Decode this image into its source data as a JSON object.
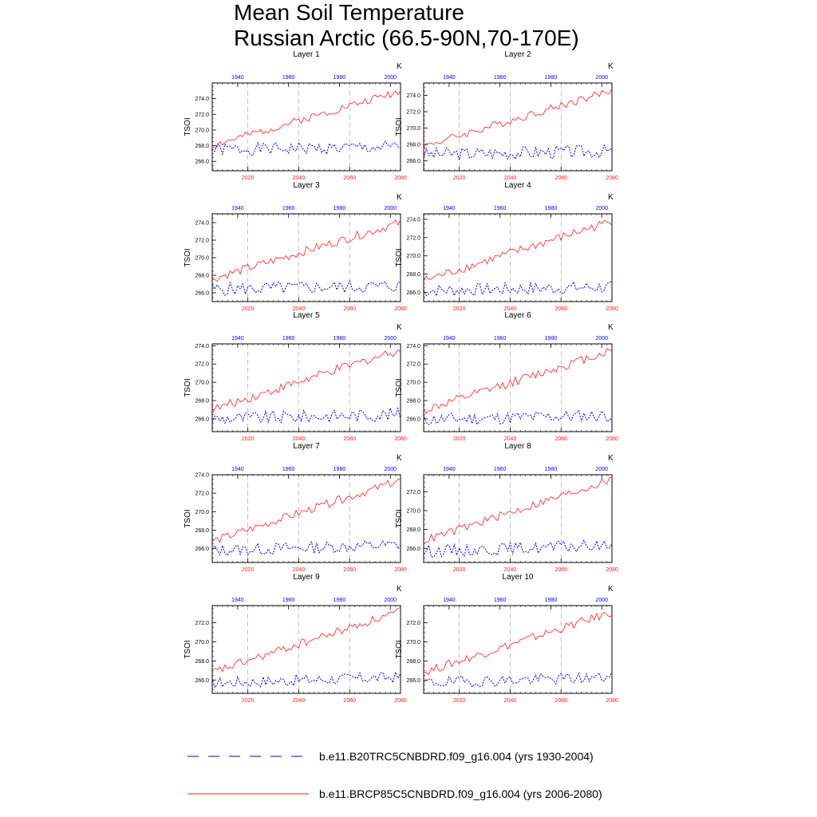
{
  "title": {
    "line1": "Mean Soil Temperature",
    "line2": "Russian Arctic (66.5-90N,70-170E)"
  },
  "colors": {
    "historical": "#0000ff",
    "future": "#ff2020",
    "grid": "#999999"
  },
  "legend": [
    {
      "label": "b.e11.B20TRC5CNBDRD.f09_g16.004 (yrs 1930-2004)",
      "style": "dashed",
      "color": "#0000ff"
    },
    {
      "label": "b.e11.BRCP85C5CNBDRD.f09_g16.004 (yrs 2006-2080)",
      "style": "solid",
      "color": "#ff2020"
    }
  ],
  "chart_data": [
    {
      "type": "line",
      "title": "Layer 1",
      "ylabel": "TSOI",
      "units": "K",
      "ylim": [
        264.8,
        276.0
      ],
      "yticks": [
        266.0,
        268.0,
        270.0,
        272.0,
        274.0
      ],
      "ytick_labels": [
        "266.0",
        "268.0",
        "270.0",
        "272.0",
        "274.0"
      ],
      "bottom_axis": {
        "range": [
          2006,
          2080
        ],
        "ticks": [
          2020,
          2040,
          2060,
          2080
        ],
        "color": "#ff2020"
      },
      "top_axis": {
        "range": [
          1930,
          2004
        ],
        "ticks": [
          1940,
          1960,
          1980,
          2000
        ],
        "color": "#0000ff"
      },
      "series": [
        {
          "name": "b.e11.B20TRC5CNBDRD.f09_g16.004 (yrs 1930-2004)",
          "x_start": 1930,
          "start": 267.5,
          "end": 267.8,
          "amp": 0.8,
          "seed": 1
        },
        {
          "name": "b.e11.BRCP85C5CNBDRD.f09_g16.004 (yrs 2006-2080)",
          "x_start": 2006,
          "start": 268.0,
          "end": 275.0,
          "amp": 0.5,
          "seed": 2
        }
      ]
    },
    {
      "type": "line",
      "title": "Layer 2",
      "ylabel": "TSOI",
      "units": "K",
      "ylim": [
        264.8,
        275.5
      ],
      "yticks": [
        266.0,
        268.0,
        270.0,
        272.0,
        274.0
      ],
      "ytick_labels": [
        "266.0",
        "268.0",
        "270.0",
        "272.0",
        "274.0"
      ],
      "bottom_axis": {
        "range": [
          2006,
          2080
        ],
        "ticks": [
          2020,
          2040,
          2060,
          2080
        ],
        "color": "#ff2020"
      },
      "top_axis": {
        "range": [
          1930,
          2004
        ],
        "ticks": [
          1940,
          1960,
          1980,
          2000
        ],
        "color": "#0000ff"
      },
      "series": [
        {
          "name": "b.e11.B20TRC5CNBDRD.f09_g16.004 (yrs 1930-2004)",
          "x_start": 1930,
          "start": 266.8,
          "end": 267.2,
          "amp": 0.8,
          "seed": 3
        },
        {
          "name": "b.e11.BRCP85C5CNBDRD.f09_g16.004 (yrs 2006-2080)",
          "x_start": 2006,
          "start": 267.8,
          "end": 274.6,
          "amp": 0.5,
          "seed": 4
        }
      ]
    },
    {
      "type": "line",
      "title": "Layer 3",
      "ylabel": "TSOI",
      "units": "K",
      "ylim": [
        265.0,
        275.0
      ],
      "yticks": [
        266.0,
        268.0,
        270.0,
        272.0,
        274.0
      ],
      "ytick_labels": [
        "266.0",
        "268.0",
        "270.0",
        "272.0",
        "274.0"
      ],
      "bottom_axis": {
        "range": [
          2006,
          2080
        ],
        "ticks": [
          2020,
          2040,
          2060,
          2080
        ],
        "color": "#ff2020"
      },
      "top_axis": {
        "range": [
          1930,
          2004
        ],
        "ticks": [
          1940,
          1960,
          1980,
          2000
        ],
        "color": "#0000ff"
      },
      "series": [
        {
          "name": "b.e11.B20TRC5CNBDRD.f09_g16.004 (yrs 1930-2004)",
          "x_start": 1930,
          "start": 266.4,
          "end": 266.8,
          "amp": 0.75,
          "seed": 5
        },
        {
          "name": "b.e11.BRCP85C5CNBDRD.f09_g16.004 (yrs 2006-2080)",
          "x_start": 2006,
          "start": 267.6,
          "end": 274.0,
          "amp": 0.5,
          "seed": 6
        }
      ]
    },
    {
      "type": "line",
      "title": "Layer 4",
      "ylabel": "TSOI",
      "units": "K",
      "ylim": [
        265.0,
        274.6
      ],
      "yticks": [
        266.0,
        268.0,
        270.0,
        272.0,
        274.0
      ],
      "ytick_labels": [
        "266.0",
        "268.0",
        "270.0",
        "272.0",
        "274.0"
      ],
      "bottom_axis": {
        "range": [
          2006,
          2080
        ],
        "ticks": [
          2020,
          2040,
          2060,
          2080
        ],
        "color": "#ff2020"
      },
      "top_axis": {
        "range": [
          1930,
          2004
        ],
        "ticks": [
          1940,
          1960,
          1980,
          2000
        ],
        "color": "#0000ff"
      },
      "series": [
        {
          "name": "b.e11.B20TRC5CNBDRD.f09_g16.004 (yrs 1930-2004)",
          "x_start": 1930,
          "start": 266.2,
          "end": 266.6,
          "amp": 0.7,
          "seed": 7
        },
        {
          "name": "b.e11.BRCP85C5CNBDRD.f09_g16.004 (yrs 2006-2080)",
          "x_start": 2006,
          "start": 267.3,
          "end": 273.8,
          "amp": 0.5,
          "seed": 8
        }
      ]
    },
    {
      "type": "line",
      "title": "Layer 5",
      "ylabel": "TSOI",
      "units": "K",
      "ylim": [
        264.6,
        274.2
      ],
      "yticks": [
        266.0,
        268.0,
        270.0,
        272.0,
        274.0
      ],
      "ytick_labels": [
        "266.0",
        "268.0",
        "270.0",
        "272.0",
        "274.0"
      ],
      "bottom_axis": {
        "range": [
          2006,
          2080
        ],
        "ticks": [
          2020,
          2040,
          2060,
          2080
        ],
        "color": "#ff2020"
      },
      "top_axis": {
        "range": [
          1930,
          2004
        ],
        "ticks": [
          1940,
          1960,
          1980,
          2000
        ],
        "color": "#0000ff"
      },
      "series": [
        {
          "name": "b.e11.B20TRC5CNBDRD.f09_g16.004 (yrs 1930-2004)",
          "x_start": 1930,
          "start": 266.0,
          "end": 266.5,
          "amp": 0.7,
          "seed": 9
        },
        {
          "name": "b.e11.BRCP85C5CNBDRD.f09_g16.004 (yrs 2006-2080)",
          "x_start": 2006,
          "start": 267.0,
          "end": 273.6,
          "amp": 0.5,
          "seed": 10
        }
      ]
    },
    {
      "type": "line",
      "title": "Layer 6",
      "ylabel": "TSOI",
      "units": "K",
      "ylim": [
        264.6,
        274.2
      ],
      "yticks": [
        266.0,
        268.0,
        270.0,
        272.0,
        274.0
      ],
      "ytick_labels": [
        "266.0",
        "268.0",
        "270.0",
        "272.0",
        "274.0"
      ],
      "bottom_axis": {
        "range": [
          2006,
          2080
        ],
        "ticks": [
          2020,
          2040,
          2060,
          2080
        ],
        "color": "#ff2020"
      },
      "top_axis": {
        "range": [
          1930,
          2004
        ],
        "ticks": [
          1940,
          1960,
          1980,
          2000
        ],
        "color": "#0000ff"
      },
      "series": [
        {
          "name": "b.e11.B20TRC5CNBDRD.f09_g16.004 (yrs 1930-2004)",
          "x_start": 1930,
          "start": 265.9,
          "end": 266.4,
          "amp": 0.7,
          "seed": 11
        },
        {
          "name": "b.e11.BRCP85C5CNBDRD.f09_g16.004 (yrs 2006-2080)",
          "x_start": 2006,
          "start": 266.9,
          "end": 273.5,
          "amp": 0.5,
          "seed": 12
        }
      ]
    },
    {
      "type": "line",
      "title": "Layer 7",
      "ylabel": "TSOI",
      "units": "K",
      "ylim": [
        264.5,
        274.0
      ],
      "yticks": [
        266.0,
        268.0,
        270.0,
        272.0,
        274.0
      ],
      "ytick_labels": [
        "266.0",
        "268.0",
        "270.0",
        "272.0",
        "274.0"
      ],
      "bottom_axis": {
        "range": [
          2006,
          2080
        ],
        "ticks": [
          2020,
          2040,
          2060,
          2080
        ],
        "color": "#ff2020"
      },
      "top_axis": {
        "range": [
          1930,
          2004
        ],
        "ticks": [
          1940,
          1960,
          1980,
          2000
        ],
        "color": "#0000ff"
      },
      "series": [
        {
          "name": "b.e11.B20TRC5CNBDRD.f09_g16.004 (yrs 1930-2004)",
          "x_start": 1930,
          "start": 265.8,
          "end": 266.4,
          "amp": 0.65,
          "seed": 13
        },
        {
          "name": "b.e11.BRCP85C5CNBDRD.f09_g16.004 (yrs 2006-2080)",
          "x_start": 2006,
          "start": 266.8,
          "end": 273.4,
          "amp": 0.45,
          "seed": 14
        }
      ]
    },
    {
      "type": "line",
      "title": "Layer 8",
      "ylabel": "TSOI",
      "units": "K",
      "ylim": [
        264.5,
        273.8
      ],
      "yticks": [
        266.0,
        268.0,
        270.0,
        272.0
      ],
      "ytick_labels": [
        "266.0",
        "268.0",
        "270.0",
        "272.0"
      ],
      "bottom_axis": {
        "range": [
          2006,
          2080
        ],
        "ticks": [
          2020,
          2040,
          2060,
          2080
        ],
        "color": "#ff2020"
      },
      "top_axis": {
        "range": [
          1930,
          2004
        ],
        "ticks": [
          1940,
          1960,
          1980,
          2000
        ],
        "color": "#0000ff"
      },
      "series": [
        {
          "name": "b.e11.B20TRC5CNBDRD.f09_g16.004 (yrs 1930-2004)",
          "x_start": 1930,
          "start": 265.7,
          "end": 266.3,
          "amp": 0.65,
          "seed": 15
        },
        {
          "name": "b.e11.BRCP85C5CNBDRD.f09_g16.004 (yrs 2006-2080)",
          "x_start": 2006,
          "start": 266.8,
          "end": 273.3,
          "amp": 0.45,
          "seed": 16
        }
      ]
    },
    {
      "type": "line",
      "title": "Layer 9",
      "ylabel": "TSOI",
      "units": "K",
      "ylim": [
        264.6,
        273.8
      ],
      "yticks": [
        266.0,
        268.0,
        270.0,
        272.0
      ],
      "ytick_labels": [
        "266.0",
        "268.0",
        "270.0",
        "272.0"
      ],
      "bottom_axis": {
        "range": [
          2006,
          2080
        ],
        "ticks": [
          2020,
          2040,
          2060,
          2080
        ],
        "color": "#ff2020"
      },
      "top_axis": {
        "range": [
          1930,
          2004
        ],
        "ticks": [
          1940,
          1960,
          1980,
          2000
        ],
        "color": "#0000ff"
      },
      "series": [
        {
          "name": "b.e11.B20TRC5CNBDRD.f09_g16.004 (yrs 1930-2004)",
          "x_start": 1930,
          "start": 265.7,
          "end": 266.3,
          "amp": 0.6,
          "seed": 17
        },
        {
          "name": "b.e11.BRCP85C5CNBDRD.f09_g16.004 (yrs 2006-2080)",
          "x_start": 2006,
          "start": 266.8,
          "end": 273.2,
          "amp": 0.45,
          "seed": 18
        }
      ]
    },
    {
      "type": "line",
      "title": "Layer 10",
      "ylabel": "TSOI",
      "units": "K",
      "ylim": [
        264.6,
        273.8
      ],
      "yticks": [
        266.0,
        268.0,
        270.0,
        272.0
      ],
      "ytick_labels": [
        "266.0",
        "268.0",
        "270.0",
        "272.0"
      ],
      "bottom_axis": {
        "range": [
          2006,
          2080
        ],
        "ticks": [
          2020,
          2040,
          2060,
          2080
        ],
        "color": "#ff2020"
      },
      "top_axis": {
        "range": [
          1930,
          2004
        ],
        "ticks": [
          1940,
          1960,
          1980,
          2000
        ],
        "color": "#0000ff"
      },
      "series": [
        {
          "name": "b.e11.B20TRC5CNBDRD.f09_g16.004 (yrs 1930-2004)",
          "x_start": 1930,
          "start": 265.7,
          "end": 266.3,
          "amp": 0.6,
          "seed": 19
        },
        {
          "name": "b.e11.BRCP85C5CNBDRD.f09_g16.004 (yrs 2006-2080)",
          "x_start": 2006,
          "start": 266.8,
          "end": 273.1,
          "amp": 0.45,
          "seed": 20
        }
      ]
    }
  ]
}
